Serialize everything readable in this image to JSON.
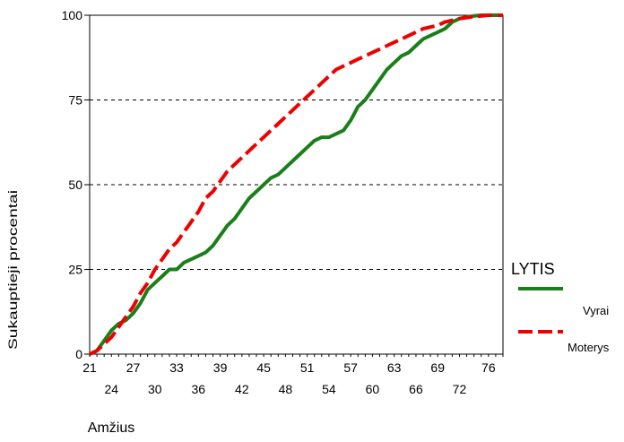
{
  "chart_data": {
    "type": "line",
    "title": "",
    "xlabel": "Amžius",
    "ylabel": "Sukauptieji procentai",
    "xlim": [
      21,
      78
    ],
    "ylim": [
      0,
      100
    ],
    "x_ticks_row1": [
      "21",
      "27",
      "33",
      "39",
      "45",
      "51",
      "57",
      "63",
      "69",
      "76"
    ],
    "x_ticks_row2": [
      "24",
      "30",
      "36",
      "42",
      "48",
      "54",
      "60",
      "66",
      "72"
    ],
    "y_ticks": [
      "0",
      "25",
      "50",
      "75",
      "100"
    ],
    "grid": "horizontal dashed",
    "legend": {
      "title": "LYTIS",
      "placement": "right",
      "entries": [
        "Vyrai",
        "Moterys"
      ]
    },
    "series": [
      {
        "name": "Vyrai",
        "color": "#1a7f1a",
        "style": "solid",
        "x": [
          21,
          22,
          23,
          24,
          25,
          26,
          27,
          28,
          29,
          30,
          31,
          32,
          33,
          34,
          35,
          36,
          37,
          38,
          39,
          40,
          41,
          42,
          43,
          44,
          45,
          46,
          47,
          48,
          49,
          50,
          51,
          52,
          53,
          54,
          55,
          56,
          57,
          58,
          59,
          60,
          61,
          62,
          63,
          64,
          65,
          66,
          67,
          68,
          69,
          70,
          71,
          72,
          73,
          74,
          75,
          76,
          77,
          78
        ],
        "values": [
          0,
          1,
          4,
          7,
          9,
          10,
          12,
          15,
          19,
          21,
          23,
          25,
          25,
          27,
          28,
          29,
          30,
          32,
          35,
          38,
          40,
          43,
          46,
          48,
          50,
          52,
          53,
          55,
          57,
          59,
          61,
          63,
          64,
          64,
          65,
          66,
          69,
          73,
          75,
          78,
          81,
          84,
          86,
          88,
          89,
          91,
          93,
          94,
          95,
          96,
          98,
          99,
          99.5,
          99.8,
          100,
          100,
          100,
          100
        ]
      },
      {
        "name": "Moterys",
        "color": "#ee0000",
        "style": "dashed",
        "x": [
          21,
          22,
          23,
          24,
          25,
          26,
          27,
          28,
          29,
          30,
          31,
          32,
          33,
          34,
          35,
          36,
          37,
          38,
          39,
          40,
          41,
          42,
          43,
          44,
          45,
          46,
          47,
          48,
          49,
          50,
          51,
          52,
          53,
          54,
          55,
          56,
          57,
          58,
          59,
          60,
          61,
          62,
          63,
          64,
          65,
          66,
          67,
          68,
          69,
          70,
          71,
          72,
          73,
          74,
          75,
          76,
          77,
          78
        ],
        "values": [
          0,
          1,
          3,
          5,
          8,
          11,
          14,
          18,
          21,
          25,
          28,
          31,
          33,
          36,
          39,
          42,
          46,
          48,
          51,
          54,
          56,
          58,
          60,
          62,
          64,
          66,
          68,
          70,
          72,
          74,
          76,
          78,
          80,
          82,
          84,
          85,
          86,
          87,
          88,
          89,
          90,
          91,
          92,
          93,
          94,
          95,
          96,
          96.5,
          97,
          98,
          98.5,
          99,
          99.3,
          99.6,
          99.8,
          100,
          100,
          100
        ]
      }
    ]
  }
}
